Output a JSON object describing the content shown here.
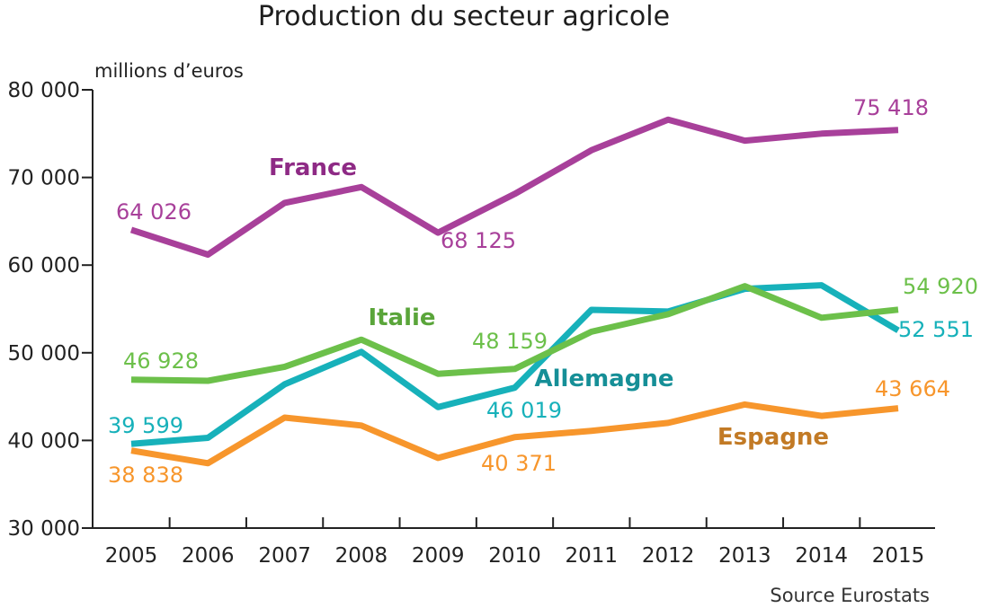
{
  "title": "Production du secteur agricole",
  "unit_label": "millions d’euros",
  "source": "Source Eurostats",
  "chart_data": {
    "type": "line",
    "x": [
      2005,
      2006,
      2007,
      2008,
      2009,
      2010,
      2011,
      2012,
      2013,
      2014,
      2015
    ],
    "ylim": [
      30000,
      80000
    ],
    "yticks": [
      30000,
      40000,
      50000,
      60000,
      70000,
      80000
    ],
    "ytick_labels": [
      "30 000",
      "40 000",
      "50 000",
      "60 000",
      "70 000",
      "80 000"
    ],
    "xtick_labels": [
      "2005",
      "2006",
      "2007",
      "2008",
      "2009",
      "2010",
      "2011",
      "2012",
      "2013",
      "2014",
      "2015"
    ],
    "grid": false,
    "series": [
      {
        "name": "France",
        "color": "#a8409a",
        "values": [
          64026,
          61200,
          67100,
          68900,
          63700,
          68125,
          73100,
          76600,
          74200,
          75000,
          75418
        ],
        "data_labels": [
          {
            "index": 0,
            "text": "64 026"
          },
          {
            "index": 5,
            "text": "68 125"
          },
          {
            "index": 10,
            "text": "75 418"
          }
        ]
      },
      {
        "name": "Italie",
        "color": "#6cc04a",
        "values": [
          46928,
          46800,
          48400,
          51500,
          47600,
          48159,
          52400,
          54400,
          57600,
          54000,
          54920
        ],
        "data_labels": [
          {
            "index": 0,
            "text": "46 928"
          },
          {
            "index": 5,
            "text": "48 159"
          },
          {
            "index": 10,
            "text": "54 920"
          }
        ]
      },
      {
        "name": "Allemagne",
        "color": "#17b1ba",
        "values": [
          39599,
          40300,
          46400,
          50100,
          43800,
          46019,
          54900,
          54700,
          57300,
          57700,
          52551
        ],
        "data_labels": [
          {
            "index": 0,
            "text": "39 599"
          },
          {
            "index": 5,
            "text": "46 019"
          },
          {
            "index": 10,
            "text": "52 551"
          }
        ]
      },
      {
        "name": "Espagne",
        "color": "#f7962c",
        "values": [
          38838,
          37400,
          42600,
          41700,
          38000,
          40371,
          41100,
          42000,
          44100,
          42800,
          43664
        ],
        "data_labels": [
          {
            "index": 0,
            "text": "38 838"
          },
          {
            "index": 5,
            "text": "40 371"
          },
          {
            "index": 10,
            "text": "43 664"
          }
        ]
      }
    ]
  }
}
